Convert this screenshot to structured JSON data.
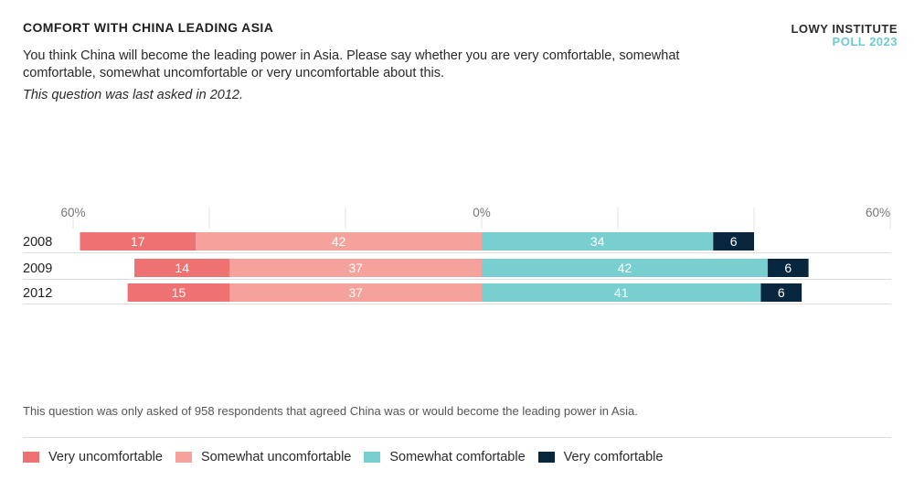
{
  "header": {
    "title": "COMFORT WITH CHINA LEADING ASIA",
    "brand_line1": "LOWY INSTITUTE",
    "brand_line2": "POLL 2023",
    "question": "You think China will become the leading power in Asia. Please say whether you are very comfortable, somewhat comfortable, somewhat uncomfortable or very uncomfortable about this.",
    "subnote": "This question was last asked in 2012."
  },
  "footnote": "This question was only asked of 958 respondents that agreed China was or would become the leading power in Asia.",
  "colors": {
    "very_uncomfortable": "#ef7272",
    "somewhat_uncomfortable": "#f5a29d",
    "somewhat_comfortable": "#79cfd0",
    "very_comfortable": "#08263d"
  },
  "chart_data": {
    "type": "bar",
    "orientation": "horizontal-diverging-stacked",
    "categories": [
      "2008",
      "2009",
      "2012"
    ],
    "series": [
      {
        "name": "Very uncomfortable",
        "values": [
          17,
          14,
          15
        ],
        "side": "negative",
        "color": "#ef7272"
      },
      {
        "name": "Somewhat uncomfortable",
        "values": [
          42,
          37,
          37
        ],
        "side": "negative",
        "color": "#f5a29d"
      },
      {
        "name": "Somewhat comfortable",
        "values": [
          34,
          42,
          41
        ],
        "side": "positive",
        "color": "#79cfd0"
      },
      {
        "name": "Very comfortable",
        "values": [
          6,
          6,
          6
        ],
        "side": "positive",
        "color": "#08263d"
      }
    ],
    "xlim": [
      -60,
      60
    ],
    "tick_labels": [
      "60%",
      "0%",
      "60%"
    ],
    "grid": true,
    "legend_position": "bottom"
  }
}
